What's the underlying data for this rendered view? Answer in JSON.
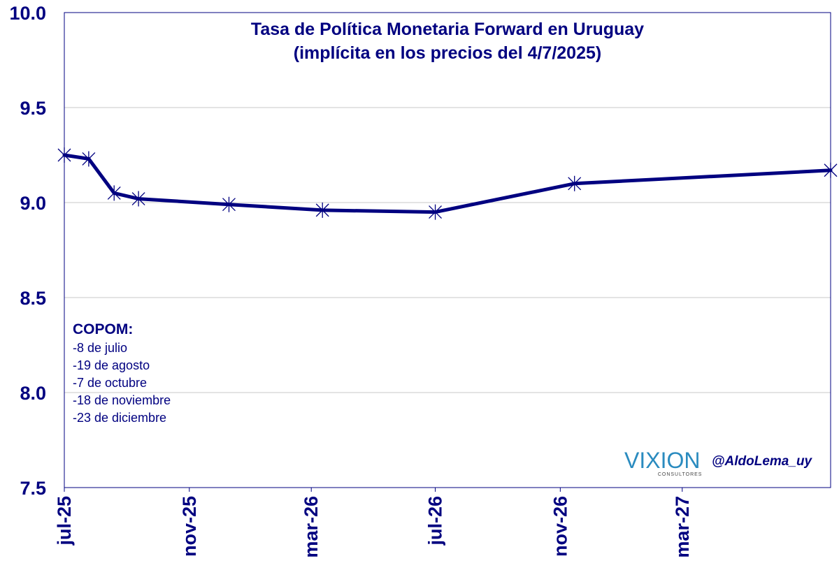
{
  "chart_data": {
    "type": "line",
    "title": "Tasa de Política Monetaria Forward en Uruguay",
    "subtitle": "(implícita en los precios del 4/7/2025)",
    "xlabel": "",
    "ylabel": "",
    "ylim": [
      7.5,
      10.0
    ],
    "yticks": [
      "7.5",
      "8.0",
      "8.5",
      "9.0",
      "9.5",
      "10.0"
    ],
    "xlim": [
      "2025-07-01",
      "2027-07-25"
    ],
    "xticks": [
      {
        "label": "jul-25",
        "date": "2025-07-01"
      },
      {
        "label": "nov-25",
        "date": "2025-11-01"
      },
      {
        "label": "mar-26",
        "date": "2026-03-01"
      },
      {
        "label": "jul-26",
        "date": "2026-07-01"
      },
      {
        "label": "nov-26",
        "date": "2026-11-01"
      },
      {
        "label": "mar-27",
        "date": "2027-03-01"
      }
    ],
    "grid": true,
    "line_color": "#000080",
    "grid_color": "#c8c8c8",
    "series": [
      {
        "marker": "asterisk",
        "points": [
          {
            "x": "2025-07-01",
            "y": 9.25
          },
          {
            "x": "2025-07-25",
            "y": 9.23
          },
          {
            "x": "2025-08-19",
            "y": 9.05
          },
          {
            "x": "2025-09-12",
            "y": 9.02
          },
          {
            "x": "2025-12-10",
            "y": 8.99
          },
          {
            "x": "2026-03-12",
            "y": 8.96
          },
          {
            "x": "2026-07-01",
            "y": 8.95
          },
          {
            "x": "2026-11-15",
            "y": 9.1
          },
          {
            "x": "2027-07-25",
            "y": 9.17
          }
        ]
      }
    ]
  },
  "annotation": {
    "heading": "COPOM:",
    "items": [
      "-8 de julio",
      "-19 de agosto",
      "-7 de octubre",
      "-18 de noviembre",
      "-23 de diciembre"
    ]
  },
  "brand": {
    "name": "VIXION",
    "subtitle": "CONSULTORES",
    "handle": "@AldoLema_uy"
  }
}
